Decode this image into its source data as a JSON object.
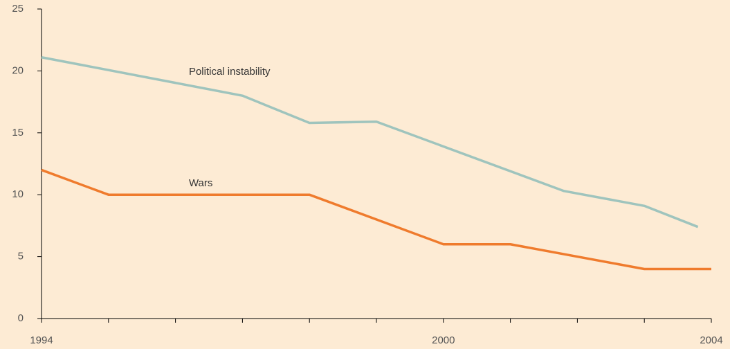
{
  "chart_data": {
    "type": "line",
    "annotations": [
      {
        "text": "Political instability",
        "x": 1996.2,
        "y": 19.9
      },
      {
        "text": "Wars",
        "x": 1996.2,
        "y": 10.9
      }
    ],
    "series": [
      {
        "name": "Political instability",
        "color": "#9fc4bd",
        "x": [
          1994,
          1997,
          1998,
          1999,
          2001.8,
          2003,
          2003.8
        ],
        "values": [
          21.1,
          18,
          15.8,
          15.9,
          10.3,
          9.1,
          7.4
        ]
      },
      {
        "name": "Wars",
        "color": "#ef7b2d",
        "x": [
          1994,
          1995,
          1998,
          2000,
          2001,
          2003,
          2004
        ],
        "values": [
          12,
          10,
          10,
          6,
          6,
          4,
          4
        ]
      }
    ],
    "xlim": [
      1994,
      2004
    ],
    "xticks": [
      1994,
      {
        "value": 1995,
        "label": null
      },
      {
        "value": 1996,
        "label": null
      },
      {
        "value": 1997,
        "label": null
      },
      {
        "value": 1998,
        "label": null
      },
      {
        "value": 1999,
        "label": null
      },
      2000,
      {
        "value": 2001,
        "label": null
      },
      {
        "value": 2002,
        "label": null
      },
      {
        "value": 2003,
        "label": null
      },
      2004
    ],
    "ylim": [
      0,
      25
    ],
    "yticks": [
      0,
      5,
      10,
      15,
      20,
      25
    ],
    "grid": false
  }
}
